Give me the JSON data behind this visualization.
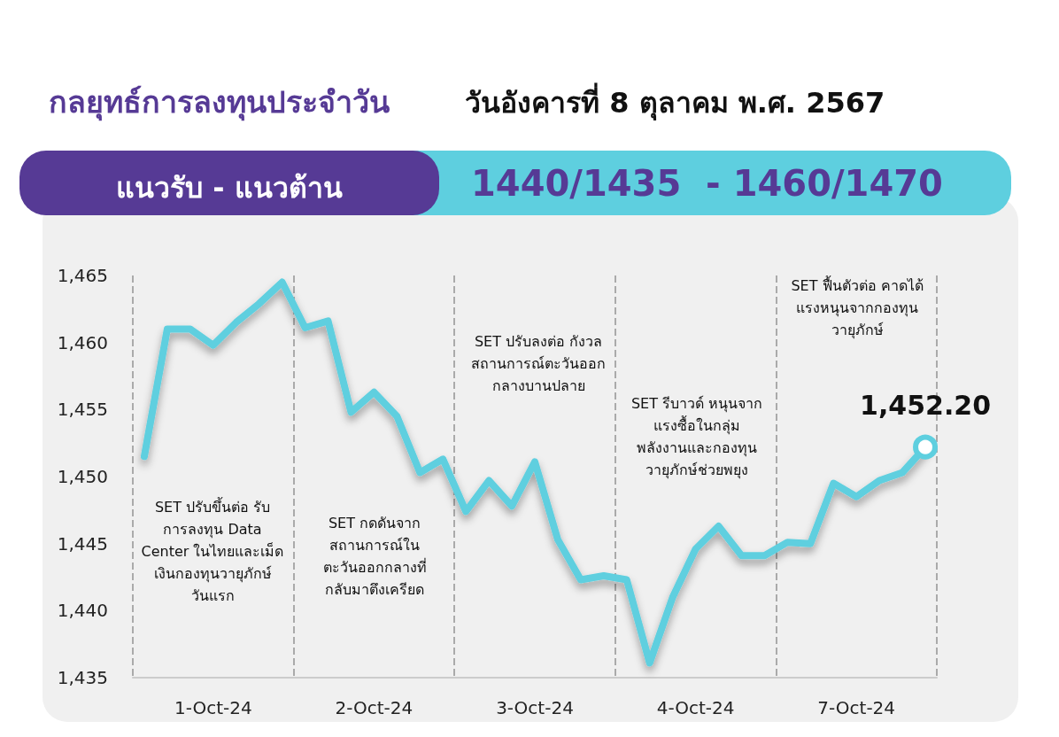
{
  "chart_data": {
    "type": "line",
    "title": "กลยุทธ์การลงทุนประจำวัน",
    "subtitle": "วันอังคารที่ 8 ตุลาคม พ.ศ. 2567",
    "annotations": [
      "แนวรับ - แนวต้าน",
      "1440/1435  - 1460/1470",
      "SET ปรับขึ้นต่อ รับ\nการลงทุน Data\nCenter ในไทยและเม็ด\nเงินกองทุนวายุภักษ์\nวันแรก",
      "SET กดดันจาก\nสถานการณ์ใน\nตะวันออกกลางที่\nกลับมาตึงเครียด",
      "SET ปรับลงต่อ กังวล\nสถานการณ์ตะวันออก\nกลางบานปลาย",
      "SET รีบาวด์ หนุนจาก\nแรงซื้อในกลุ่ม\nพลังงานและกองทุน\nวายุภักษ์ช่วยพยุง",
      "SET ฟื้นตัวต่อ คาดได้\nแรงหนุนจากกองทุน\nวายุภักษ์"
    ],
    "categories": [
      null,
      null,
      null,
      "1-Oct-24",
      null,
      null,
      null,
      null,
      null,
      null,
      "2-Oct-24",
      null,
      null,
      null,
      null,
      null,
      null,
      "3-Oct-24",
      null,
      null,
      null,
      null,
      null,
      null,
      "4-Oct-24",
      null,
      null,
      null,
      null,
      null,
      null,
      "7-Oct-24",
      null,
      null,
      null
    ],
    "series": [
      {
        "color": "#5ecfdf",
        "values": [
          1451.5,
          1461.0,
          1461.0,
          1459.8,
          1461.5,
          1462.9,
          1464.5,
          1461.1,
          1461.6,
          1454.8,
          1456.3,
          1454.5,
          1450.3,
          1451.3,
          1447.4,
          1449.7,
          1447.8,
          1451.1,
          1445.3,
          1442.3,
          1442.6,
          1442.3,
          1436.1,
          1441.0,
          1444.6,
          1446.3,
          1444.1,
          1444.1,
          1445.1,
          1445.0,
          1449.5,
          1448.5,
          1449.7,
          1450.3,
          1452.2
        ],
        "value_labels": [
          null,
          null,
          null,
          null,
          null,
          null,
          null,
          null,
          null,
          null,
          null,
          null,
          null,
          null,
          null,
          null,
          null,
          null,
          null,
          null,
          null,
          null,
          null,
          null,
          null,
          null,
          null,
          null,
          null,
          null,
          null,
          null,
          null,
          null,
          "1,452.20"
        ]
      }
    ],
    "ylim": [
      1435,
      1465
    ],
    "yticks": [
      {
        "value": 1435,
        "label": "1,435"
      },
      {
        "value": 1440,
        "label": "1,440"
      },
      {
        "value": 1445,
        "label": "1,445"
      },
      {
        "value": 1450,
        "label": "1,450"
      },
      {
        "value": 1455,
        "label": "1,455"
      },
      {
        "value": 1460,
        "label": "1,460"
      },
      {
        "value": 1465,
        "label": "1,465"
      }
    ],
    "grid": "x",
    "marker": "none",
    "line_style": "solid"
  }
}
